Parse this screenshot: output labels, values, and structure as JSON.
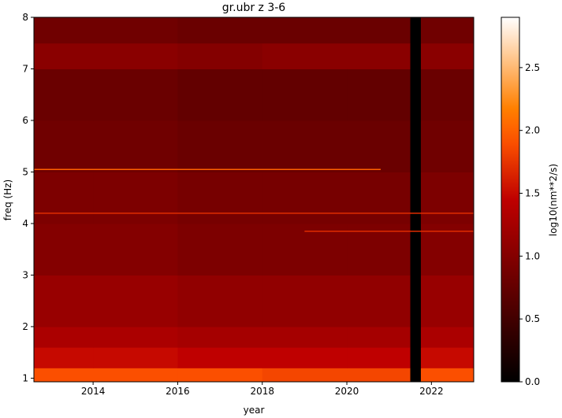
{
  "chart_data": {
    "type": "heatmap",
    "title": "gr.ubr z 3-6",
    "x_label": "year",
    "y_label": "freq (Hz)",
    "colorbar_label": "log10(nm**2/s)",
    "colormap": "gist_heat",
    "x_edges": [
      2012.6,
      2014,
      2016,
      2018,
      2020,
      2021.5,
      2021.75,
      2023
    ],
    "y_edges": [
      0.93,
      1.2,
      1.6,
      2,
      3,
      4,
      5,
      6,
      7,
      7.5,
      8
    ],
    "z": [
      [
        1.9,
        1.9,
        1.9,
        1.85,
        1.85,
        0,
        1.9
      ],
      [
        1.5,
        1.5,
        1.45,
        1.45,
        1.45,
        0,
        1.5
      ],
      [
        1.3,
        1.3,
        1.25,
        1.25,
        1.25,
        0,
        1.3
      ],
      [
        1.15,
        1.15,
        1.1,
        1.1,
        1.1,
        0,
        1.15
      ],
      [
        1.0,
        1.0,
        0.95,
        0.95,
        0.95,
        0,
        1.0
      ],
      [
        0.95,
        0.95,
        0.9,
        0.9,
        0.9,
        0,
        0.95
      ],
      [
        0.85,
        0.85,
        0.8,
        0.8,
        0.8,
        0,
        0.85
      ],
      [
        0.8,
        0.8,
        0.75,
        0.75,
        0.75,
        0,
        0.8
      ],
      [
        1.05,
        1.05,
        1.0,
        1.05,
        1.05,
        0,
        1.05
      ],
      [
        0.85,
        0.85,
        0.8,
        0.8,
        0.8,
        0,
        0.85
      ]
    ],
    "lines": [
      {
        "freq": 5.05,
        "start": 2012.6,
        "end": 2020.8,
        "value": 2.0
      },
      {
        "freq": 4.2,
        "start": 2012.6,
        "end": 2023,
        "value": 1.7
      },
      {
        "freq": 3.85,
        "start": 2019,
        "end": 2023,
        "value": 1.7
      }
    ],
    "xlim": [
      2012.6,
      2023
    ],
    "ylim": [
      0.93,
      8
    ],
    "xticks": [
      2014,
      2016,
      2018,
      2020,
      2022
    ],
    "yticks": [
      1,
      2,
      3,
      4,
      5,
      6,
      7,
      8
    ],
    "clim": [
      0,
      2.9
    ],
    "cticks": [
      {
        "value": 0,
        "label": "0.0"
      },
      0.5,
      {
        "value": 1,
        "label": "1.0"
      },
      1.5,
      {
        "value": 2,
        "label": "2.0"
      },
      2.5
    ]
  }
}
